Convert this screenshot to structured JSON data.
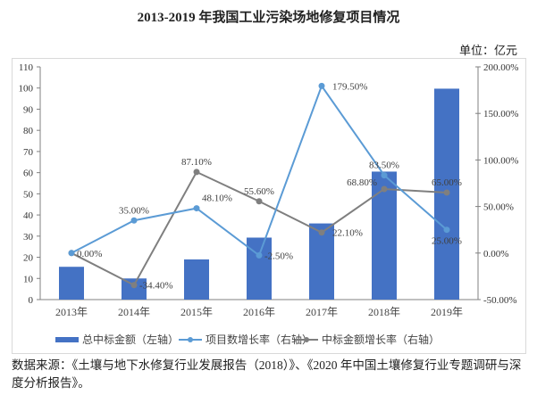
{
  "title": "2013-2019 年我国工业污染场地修复项目情况",
  "unit": "单位：亿元",
  "source": "数据来源：《土壤与地下水修复行业发展报告（2018）》、《2020 年中国土壤修复行业专题调研与深度分析报告》。",
  "chart_data": {
    "type": "bar+line",
    "categories": [
      "2013年",
      "2014年",
      "2015年",
      "2016年",
      "2017年",
      "2018年",
      "2019年"
    ],
    "left_axis": {
      "ylim": [
        0,
        110
      ],
      "ticks": [
        0,
        10,
        20,
        30,
        40,
        50,
        60,
        70,
        80,
        90,
        100,
        110
      ]
    },
    "right_axis": {
      "ylim": [
        -50,
        200
      ],
      "ticks": [
        "-50.00%",
        "0.00%",
        "50.00%",
        "100.00%",
        "150.00%",
        "200.00%"
      ],
      "tick_values": [
        -50,
        0,
        50,
        100,
        150,
        200
      ]
    },
    "series": [
      {
        "name": "总中标金额（左轴）",
        "type": "bar",
        "axis": "left",
        "color": "#4472C4",
        "values": [
          15.5,
          10,
          19,
          29.3,
          36,
          60.5,
          99.7
        ]
      },
      {
        "name": "项目数增长率（右轴）",
        "type": "line",
        "axis": "right",
        "color": "#5B9BD5",
        "values": [
          0,
          35,
          48.1,
          -2.5,
          179.5,
          83.5,
          25
        ],
        "labels": [
          "0.00%",
          "35.00%",
          "48.10%",
          "-2.50%",
          "179.50%",
          "83.50%",
          "25.00%"
        ]
      },
      {
        "name": "中标金额增长率（右轴）",
        "type": "line",
        "axis": "right",
        "color": "#7F7F7F",
        "values": [
          0,
          -34.4,
          87.1,
          55.6,
          22.1,
          68.8,
          65
        ],
        "labels": [
          "",
          "-34.40%",
          "87.10%",
          "55.60%",
          "22.10%",
          "68.80%",
          "65.00%"
        ]
      }
    ],
    "legend": "bottom"
  }
}
